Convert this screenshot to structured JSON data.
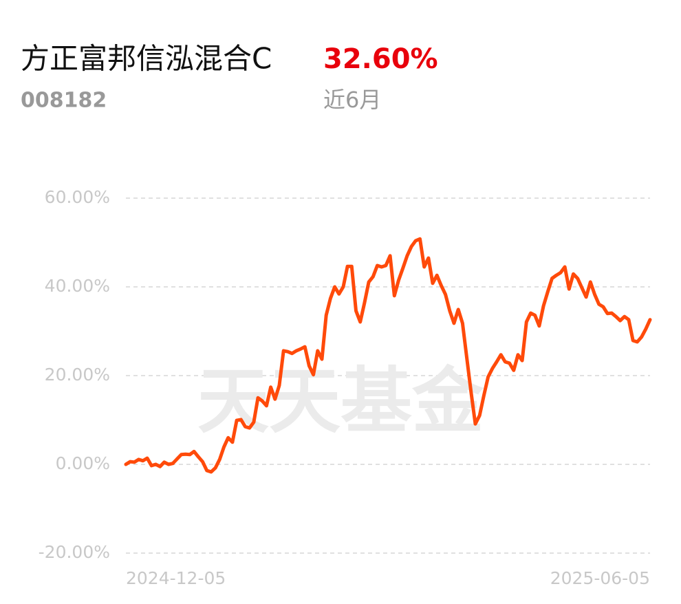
{
  "header": {
    "fund_name": "方正富邦信泓混合C",
    "return": "32.60%",
    "code": "008182",
    "period": "近6月"
  },
  "chart_data": {
    "type": "line",
    "watermark": "天天基金",
    "categories": [
      "2024-12-05",
      null,
      null,
      null,
      null,
      null,
      null,
      null,
      null,
      null,
      null,
      null,
      null,
      null,
      null,
      null,
      null,
      null,
      null,
      null,
      null,
      null,
      null,
      null,
      null,
      null,
      null,
      null,
      null,
      null,
      null,
      null,
      null,
      null,
      null,
      null,
      null,
      null,
      null,
      null,
      null,
      null,
      null,
      null,
      null,
      null,
      null,
      null,
      null,
      null,
      null,
      null,
      null,
      null,
      null,
      null,
      null,
      null,
      null,
      null,
      null,
      null,
      null,
      null,
      null,
      null,
      null,
      null,
      null,
      null,
      null,
      null,
      null,
      null,
      null,
      null,
      null,
      null,
      null,
      null,
      null,
      null,
      null,
      null,
      null,
      null,
      null,
      null,
      null,
      null,
      null,
      null,
      null,
      null,
      null,
      null,
      null,
      null,
      null,
      null,
      null,
      null,
      null,
      null,
      null,
      null,
      null,
      null,
      null,
      null,
      null,
      null,
      null,
      null,
      null,
      null,
      null,
      null,
      null,
      null,
      null,
      null,
      null,
      "2025-06-05"
    ],
    "series": [
      {
        "color": "#ff4a0a",
        "values": [
          0,
          0.6,
          0.5,
          1.1,
          0.8,
          1.4,
          -0.3,
          0,
          -0.5,
          0.5,
          0,
          0.2,
          1.2,
          2.2,
          2.3,
          2.2,
          2.9,
          1.7,
          0.6,
          -1.4,
          -1.7,
          -0.8,
          1.1,
          3.9,
          6.0,
          5.0,
          9.9,
          10.1,
          8.5,
          8.2,
          9.5,
          15.0,
          14.3,
          13.2,
          17.4,
          14.7,
          17.8,
          25.6,
          25.4,
          25.0,
          25.6,
          26.0,
          26.5,
          22.2,
          20.2,
          25.6,
          23.7,
          33.6,
          37.4,
          40.0,
          38.4,
          40.0,
          44.6,
          44.6,
          34.6,
          32.1,
          36.4,
          41.1,
          42.3,
          44.8,
          44.5,
          44.8,
          47.0,
          38.0,
          41.5,
          44.2,
          47.0,
          49.1,
          50.4,
          50.8,
          44.5,
          46.5,
          40.8,
          42.6,
          40.3,
          38.3,
          34.6,
          31.8,
          34.9,
          31.8,
          24.0,
          16.3,
          9.1,
          11.0,
          15.5,
          19.7,
          21.6,
          23.1,
          24.7,
          23.1,
          22.8,
          21.2,
          24.7,
          23.4,
          32.1,
          34.1,
          33.6,
          31.2,
          35.7,
          38.9,
          41.9,
          42.6,
          43.2,
          44.5,
          39.5,
          42.9,
          41.9,
          39.8,
          37.7,
          41.1,
          38.3,
          36.1,
          35.5,
          34.0,
          34.1,
          33.3,
          32.4,
          33.3,
          32.6,
          27.9,
          27.6,
          28.7,
          30.5,
          32.6
        ]
      }
    ],
    "ylim": [
      -20,
      60
    ],
    "yticks": [
      {
        "value": -20,
        "label": "-20.00%"
      },
      {
        "value": 0,
        "label": "0.00%"
      },
      {
        "value": 20,
        "label": "20.00%"
      },
      {
        "value": 40,
        "label": "40.00%"
      },
      {
        "value": 60,
        "label": "60.00%"
      }
    ],
    "grid": true
  }
}
